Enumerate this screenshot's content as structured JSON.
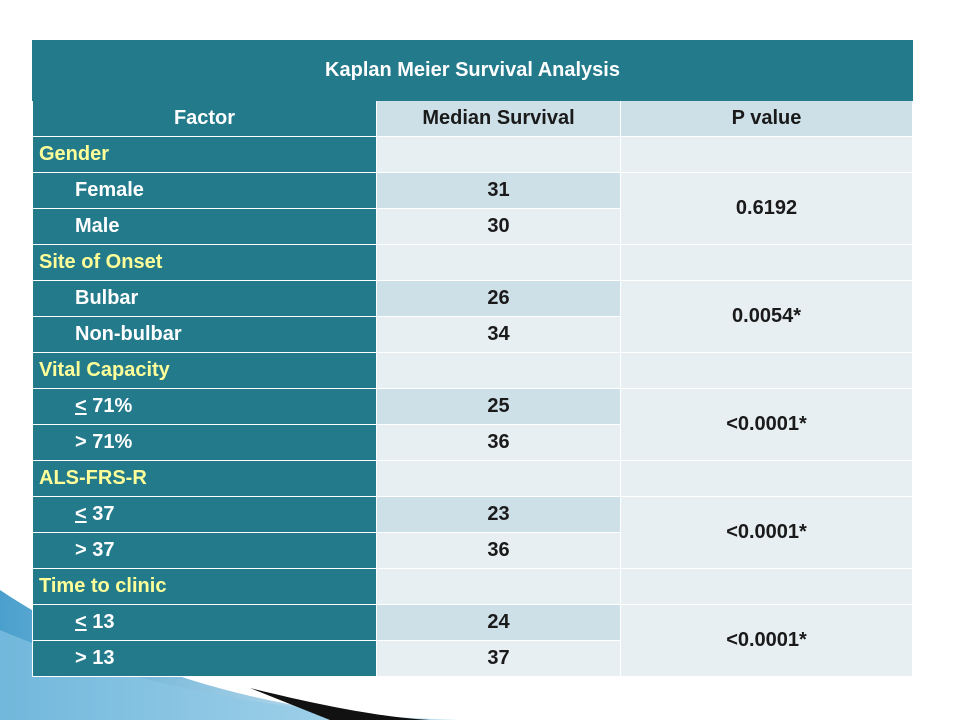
{
  "table": {
    "title": "Kaplan Meier Survival  Analysis",
    "headers": [
      "Factor",
      "Median Survival",
      "P value"
    ],
    "groups": [
      {
        "label": "Gender",
        "p_value": "0.6192",
        "rows": [
          {
            "sym": "",
            "label": "Female",
            "median": "31"
          },
          {
            "sym": "",
            "label": "Male",
            "median": "30"
          }
        ]
      },
      {
        "label": "Site of Onset",
        "p_value": "0.0054*",
        "rows": [
          {
            "sym": "",
            "label": "Bulbar",
            "median": "26"
          },
          {
            "sym": "",
            "label": "Non-bulbar",
            "median": "34"
          }
        ]
      },
      {
        "label": "Vital Capacity",
        "p_value": "<0.0001*",
        "rows": [
          {
            "sym": "<",
            "label": " 71%",
            "median": "25"
          },
          {
            "sym": "",
            "label": "> 71%",
            "median": "36"
          }
        ]
      },
      {
        "label": "ALS-FRS-R",
        "p_value": "<0.0001*",
        "rows": [
          {
            "sym": "<",
            "label": " 37",
            "median": "23"
          },
          {
            "sym": "",
            "label": "> 37",
            "median": "36"
          }
        ]
      },
      {
        "label": "Time to clinic",
        "p_value": "<0.0001*",
        "rows": [
          {
            "sym": "<",
            "label": " 13",
            "median": "24"
          },
          {
            "sym": "",
            "label": "> 13",
            "median": "37"
          }
        ]
      }
    ]
  },
  "colors": {
    "header_bg": "#237a8b",
    "group_label": "#ffff99",
    "cell_light": "#e8eff3",
    "cell_dark": "#cde0e8"
  }
}
